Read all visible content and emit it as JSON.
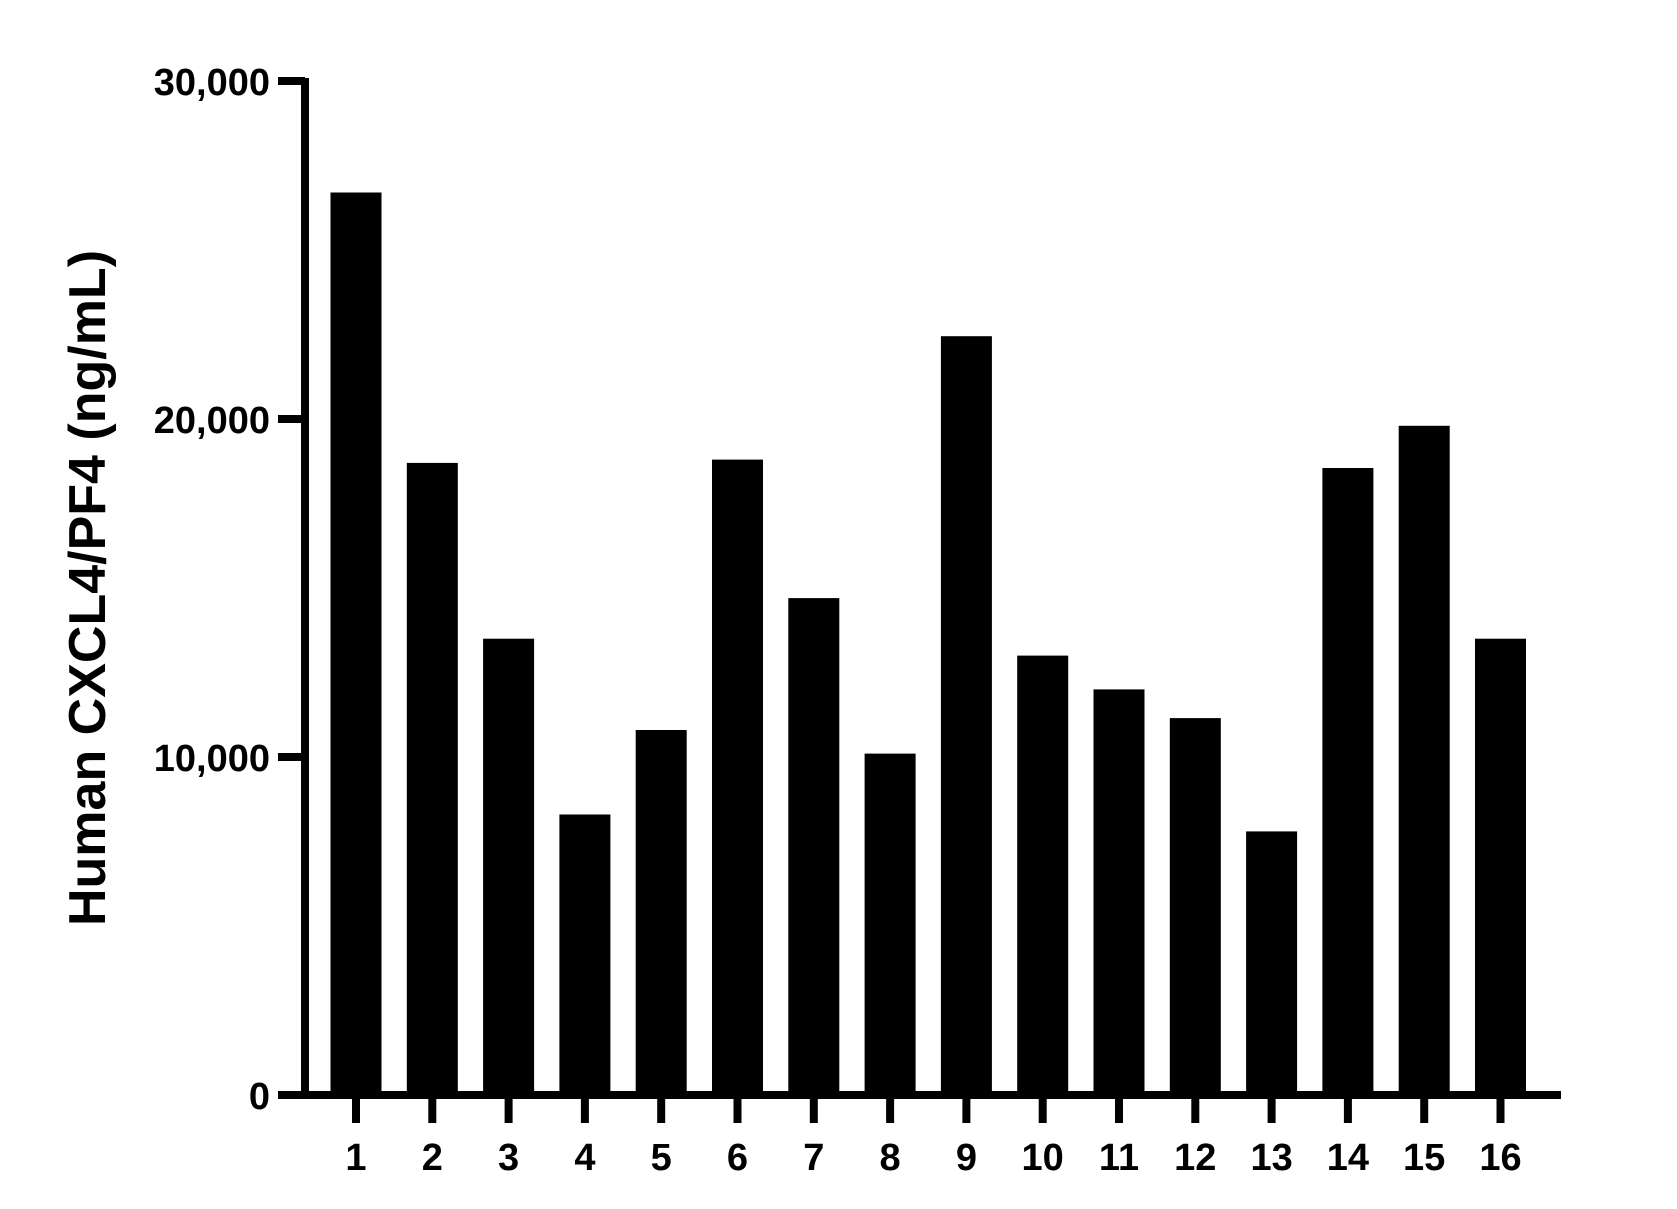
{
  "chart_data": {
    "type": "bar",
    "title": "",
    "xlabel": "",
    "ylabel": "Human CXCL4/PF4 (ng/mL)",
    "categories": [
      "1",
      "2",
      "3",
      "4",
      "5",
      "6",
      "7",
      "8",
      "9",
      "10",
      "11",
      "12",
      "13",
      "14",
      "15",
      "16"
    ],
    "values": [
      26700,
      18700,
      13500,
      8300,
      10800,
      18800,
      14700,
      10100,
      22450,
      13000,
      12000,
      11150,
      7800,
      18550,
      19800,
      13500
    ],
    "ylim": [
      0,
      30000
    ],
    "yticks": [
      0,
      10000,
      20000,
      30000
    ],
    "ytick_labels": [
      "0",
      "10,000",
      "20,000",
      "30,000"
    ],
    "grid": false,
    "legend": "none",
    "colors": {
      "bar": "#000000",
      "axis": "#000000",
      "background": "#ffffff"
    }
  }
}
